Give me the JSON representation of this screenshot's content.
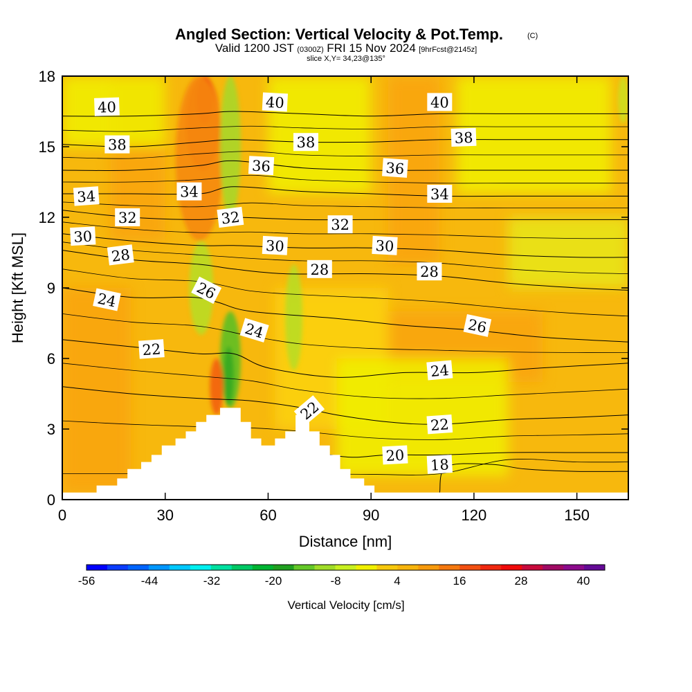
{
  "title": "Angled Section: Vertical Velocity & Pot.Temp.",
  "title_mark": "(C)",
  "subtitle_pre": "Valid 1200 JST",
  "subtitle_utc": "(0300Z)",
  "subtitle_date": "FRI 15 Nov 2024",
  "subtitle_fcst": "[9hrFcst@2145z]",
  "slice_text": "slice X,Y= 34,23@135°",
  "chart_data": {
    "type": "contour",
    "xlabel": "Distance [nm]",
    "ylabel": "Height [Kft MSL]",
    "xlim": [
      0,
      165
    ],
    "ylim": [
      0,
      18
    ],
    "xticks": [
      "0",
      "30",
      "60",
      "90",
      "120",
      "150"
    ],
    "yticks": [
      "0",
      "3",
      "6",
      "9",
      "12",
      "15",
      "18"
    ],
    "terrain": [
      [
        0,
        0.3
      ],
      [
        10,
        0.3
      ],
      [
        10,
        0.6
      ],
      [
        16,
        0.6
      ],
      [
        16,
        0.9
      ],
      [
        19,
        0.9
      ],
      [
        19,
        1.3
      ],
      [
        23,
        1.3
      ],
      [
        23,
        1.6
      ],
      [
        26,
        1.6
      ],
      [
        26,
        1.9
      ],
      [
        29,
        1.9
      ],
      [
        29,
        2.3
      ],
      [
        33,
        2.3
      ],
      [
        33,
        2.6
      ],
      [
        36,
        2.6
      ],
      [
        36,
        2.9
      ],
      [
        39,
        2.9
      ],
      [
        39,
        3.3
      ],
      [
        42,
        3.3
      ],
      [
        42,
        3.6
      ],
      [
        46,
        3.6
      ],
      [
        46,
        3.9
      ],
      [
        52,
        3.9
      ],
      [
        52,
        3.3
      ],
      [
        55,
        3.3
      ],
      [
        55,
        2.6
      ],
      [
        58,
        2.6
      ],
      [
        58,
        2.3
      ],
      [
        62,
        2.3
      ],
      [
        62,
        2.6
      ],
      [
        65,
        2.6
      ],
      [
        65,
        2.9
      ],
      [
        68,
        2.9
      ],
      [
        68,
        3.6
      ],
      [
        72,
        3.6
      ],
      [
        72,
        2.9
      ],
      [
        75,
        2.9
      ],
      [
        75,
        2.3
      ],
      [
        78,
        2.3
      ],
      [
        78,
        1.9
      ],
      [
        81,
        1.9
      ],
      [
        81,
        1.3
      ],
      [
        84,
        1.3
      ],
      [
        84,
        0.9
      ],
      [
        88,
        0.9
      ],
      [
        88,
        0.6
      ],
      [
        91,
        0.6
      ],
      [
        91,
        0.3
      ],
      [
        165,
        0.3
      ]
    ],
    "contours": [
      {
        "level": "18",
        "pts": [
          [
            110,
            0.3
          ],
          [
            112,
            1.4
          ],
          [
            125,
            1.5
          ],
          [
            135,
            1.3
          ],
          [
            150,
            1.2
          ],
          [
            165,
            1.2
          ]
        ]
      },
      {
        "level": "20",
        "pts": [
          [
            78,
            1.9
          ],
          [
            85,
            1.8
          ],
          [
            95,
            1.9
          ],
          [
            110,
            1.9
          ],
          [
            130,
            2.0
          ],
          [
            150,
            2.0
          ],
          [
            165,
            2.0
          ]
        ]
      },
      {
        "level": "22",
        "pts": [
          [
            0,
            4.8
          ],
          [
            20,
            4.5
          ],
          [
            40,
            4.3
          ],
          [
            55,
            4.2
          ],
          [
            70,
            3.9
          ],
          [
            80,
            3.6
          ],
          [
            95,
            3.3
          ],
          [
            110,
            3.2
          ],
          [
            130,
            3.4
          ],
          [
            150,
            3.5
          ],
          [
            165,
            3.6
          ]
        ]
      },
      {
        "level": "24",
        "pts": [
          [
            0,
            6.8
          ],
          [
            20,
            6.5
          ],
          [
            40,
            6.2
          ],
          [
            50,
            6.2
          ],
          [
            60,
            5.6
          ],
          [
            80,
            5.2
          ],
          [
            100,
            5.4
          ],
          [
            120,
            5.4
          ],
          [
            140,
            5.6
          ],
          [
            165,
            5.8
          ]
        ]
      },
      {
        "level": "26",
        "pts": [
          [
            0,
            9.0
          ],
          [
            20,
            8.6
          ],
          [
            38,
            8.6
          ],
          [
            45,
            8.4
          ],
          [
            55,
            8.0
          ],
          [
            80,
            7.7
          ],
          [
            100,
            7.4
          ],
          [
            120,
            7.2
          ],
          [
            140,
            6.9
          ],
          [
            165,
            6.7
          ]
        ]
      },
      {
        "level": "28",
        "pts": [
          [
            0,
            10.6
          ],
          [
            20,
            10.2
          ],
          [
            40,
            10.0
          ],
          [
            50,
            9.8
          ],
          [
            65,
            9.6
          ],
          [
            90,
            9.6
          ],
          [
            110,
            9.5
          ],
          [
            130,
            9.2
          ],
          [
            150,
            9.0
          ],
          [
            165,
            8.9
          ]
        ]
      },
      {
        "level": "30",
        "pts": [
          [
            0,
            11.3
          ],
          [
            20,
            11.0
          ],
          [
            40,
            10.8
          ],
          [
            50,
            10.8
          ],
          [
            70,
            10.7
          ],
          [
            90,
            10.7
          ],
          [
            110,
            10.6
          ],
          [
            130,
            10.4
          ],
          [
            150,
            10.3
          ],
          [
            165,
            10.3
          ]
        ]
      },
      {
        "level": "32",
        "pts": [
          [
            0,
            12.3
          ],
          [
            20,
            12.0
          ],
          [
            40,
            11.9
          ],
          [
            50,
            12.0
          ],
          [
            70,
            11.9
          ],
          [
            90,
            11.9
          ],
          [
            110,
            11.9
          ],
          [
            130,
            11.9
          ],
          [
            150,
            11.9
          ],
          [
            165,
            11.9
          ]
        ]
      },
      {
        "level": "34",
        "pts": [
          [
            0,
            13.0
          ],
          [
            20,
            13.0
          ],
          [
            40,
            13.0
          ],
          [
            50,
            13.3
          ],
          [
            70,
            13.1
          ],
          [
            90,
            13.0
          ],
          [
            110,
            12.9
          ],
          [
            130,
            12.9
          ],
          [
            150,
            12.9
          ],
          [
            165,
            12.9
          ]
        ]
      },
      {
        "level": "36",
        "pts": [
          [
            0,
            14.0
          ],
          [
            20,
            14.0
          ],
          [
            40,
            14.2
          ],
          [
            50,
            14.4
          ],
          [
            70,
            14.1
          ],
          [
            90,
            14.0
          ],
          [
            110,
            14.0
          ],
          [
            130,
            14.0
          ],
          [
            150,
            14.0
          ],
          [
            165,
            14.0
          ]
        ]
      },
      {
        "level": "38",
        "pts": [
          [
            0,
            15.1
          ],
          [
            20,
            15.0
          ],
          [
            40,
            15.2
          ],
          [
            50,
            15.3
          ],
          [
            70,
            15.2
          ],
          [
            90,
            15.2
          ],
          [
            110,
            15.3
          ],
          [
            130,
            15.3
          ],
          [
            150,
            15.3
          ],
          [
            165,
            15.3
          ]
        ]
      },
      {
        "level": "40",
        "pts": [
          [
            0,
            16.3
          ],
          [
            20,
            16.3
          ],
          [
            40,
            16.4
          ],
          [
            50,
            16.5
          ],
          [
            70,
            16.4
          ],
          [
            90,
            16.3
          ],
          [
            110,
            16.4
          ],
          [
            130,
            16.4
          ],
          [
            150,
            16.4
          ],
          [
            165,
            16.4
          ]
        ]
      }
    ],
    "contour_labels": [
      {
        "text": "40",
        "x": 13,
        "y": 16.7,
        "angle": -2
      },
      {
        "text": "40",
        "x": 62,
        "y": 16.9,
        "angle": 3
      },
      {
        "text": "40",
        "x": 110,
        "y": 16.9,
        "angle": 0
      },
      {
        "text": "38",
        "x": 16,
        "y": 15.1,
        "angle": 0
      },
      {
        "text": "38",
        "x": 71,
        "y": 15.2,
        "angle": 0
      },
      {
        "text": "38",
        "x": 117,
        "y": 15.4,
        "angle": -2
      },
      {
        "text": "36",
        "x": 58,
        "y": 14.2,
        "angle": 3
      },
      {
        "text": "36",
        "x": 97,
        "y": 14.1,
        "angle": 4
      },
      {
        "text": "34",
        "x": 7,
        "y": 12.9,
        "angle": -4
      },
      {
        "text": "34",
        "x": 37,
        "y": 13.1,
        "angle": 0
      },
      {
        "text": "34",
        "x": 110,
        "y": 13.0,
        "angle": 0
      },
      {
        "text": "32",
        "x": 19,
        "y": 12.0,
        "angle": 0
      },
      {
        "text": "32",
        "x": 49,
        "y": 12.0,
        "angle": -7
      },
      {
        "text": "32",
        "x": 81,
        "y": 11.7,
        "angle": 0
      },
      {
        "text": "30",
        "x": 6,
        "y": 11.2,
        "angle": -3
      },
      {
        "text": "30",
        "x": 62,
        "y": 10.8,
        "angle": 3
      },
      {
        "text": "30",
        "x": 94,
        "y": 10.8,
        "angle": 3
      },
      {
        "text": "28",
        "x": 17,
        "y": 10.4,
        "angle": -7
      },
      {
        "text": "28",
        "x": 75,
        "y": 9.8,
        "angle": 0
      },
      {
        "text": "28",
        "x": 107,
        "y": 9.7,
        "angle": 0
      },
      {
        "text": "26",
        "x": 42,
        "y": 8.9,
        "angle": 27
      },
      {
        "text": "26",
        "x": 121,
        "y": 7.4,
        "angle": 12
      },
      {
        "text": "24",
        "x": 13,
        "y": 8.5,
        "angle": 12
      },
      {
        "text": "24",
        "x": 56,
        "y": 7.2,
        "angle": 17
      },
      {
        "text": "24",
        "x": 110,
        "y": 5.5,
        "angle": -5
      },
      {
        "text": "22",
        "x": 26,
        "y": 6.4,
        "angle": -4
      },
      {
        "text": "22",
        "x": 72,
        "y": 3.8,
        "angle": -40
      },
      {
        "text": "22",
        "x": 110,
        "y": 3.2,
        "angle": -4
      },
      {
        "text": "20",
        "x": 97,
        "y": 1.9,
        "angle": -3
      },
      {
        "text": "18",
        "x": 110,
        "y": 1.5,
        "angle": -3
      }
    ],
    "shading": {
      "background": "#f7b80d",
      "patches": [
        {
          "color": "#f9a30c",
          "x": [
            0,
            20
          ],
          "y": [
            0.3,
            9
          ]
        },
        {
          "color": "#f9a30c",
          "x": [
            14,
            30
          ],
          "y": [
            11,
            18
          ]
        },
        {
          "color": "#f9a30c",
          "x": [
            95,
            140
          ],
          "y": [
            5,
            8
          ]
        },
        {
          "color": "#f9a30c",
          "x": [
            95,
            110
          ],
          "y": [
            10,
            18
          ]
        },
        {
          "color": "#fbd20e",
          "x": [
            62,
            95
          ],
          "y": [
            3,
            9
          ]
        },
        {
          "color": "#f0f000",
          "x": [
            80,
            130
          ],
          "y": [
            1,
            6
          ]
        },
        {
          "color": "#f0f000",
          "x": [
            60,
            90
          ],
          "y": [
            13,
            18
          ]
        },
        {
          "color": "#f0f000",
          "x": [
            115,
            160
          ],
          "y": [
            13,
            18
          ]
        },
        {
          "color": "#f0f000",
          "x": [
            0,
            30
          ],
          "y": [
            15,
            18
          ]
        },
        {
          "color": "#e8e61a",
          "x": [
            130,
            165
          ],
          "y": [
            9,
            12
          ]
        }
      ],
      "plumes": [
        {
          "color": "#f25f12",
          "x": [
            36,
            46
          ],
          "y": [
            14,
            18
          ]
        },
        {
          "color": "#f0300c",
          "x": [
            39,
            44
          ],
          "y": [
            16,
            18
          ]
        },
        {
          "color": "#f58a10",
          "x": [
            33,
            47
          ],
          "y": [
            11,
            18
          ]
        },
        {
          "color": "#a8d62a",
          "x": [
            46,
            52
          ],
          "y": [
            12,
            18
          ]
        },
        {
          "color": "#b9dc22",
          "x": [
            37,
            44
          ],
          "y": [
            7,
            11
          ]
        },
        {
          "color": "#5cbf23",
          "x": [
            46,
            52
          ],
          "y": [
            3.9,
            8
          ]
        },
        {
          "color": "#35a820",
          "x": [
            47,
            50
          ],
          "y": [
            4,
            6.5
          ]
        },
        {
          "color": "#f25f12",
          "x": [
            43,
            47
          ],
          "y": [
            3.6,
            6
          ]
        },
        {
          "color": "#b9dc22",
          "x": [
            65,
            70
          ],
          "y": [
            5.5,
            10
          ]
        },
        {
          "color": "#ccdf20",
          "x": [
            162,
            165
          ],
          "y": [
            16,
            18
          ]
        }
      ]
    },
    "colorbar": {
      "label": "Vertical Velocity [cm/s]",
      "tick_labels": [
        "-56",
        "-44",
        "-32",
        "-20",
        "-8",
        "4",
        "16",
        "28",
        "40"
      ],
      "colors": [
        "#0000ff",
        "#0a3cff",
        "#0064ff",
        "#0096ff",
        "#00c8ff",
        "#00f0f0",
        "#00e0a0",
        "#00c864",
        "#00b432",
        "#20a020",
        "#64c828",
        "#a0dc28",
        "#c8f020",
        "#f0f000",
        "#f7c80d",
        "#f7b40d",
        "#f79a0d",
        "#f5780f",
        "#f25012",
        "#f02810",
        "#f00a0a",
        "#c80a3c",
        "#a00a64",
        "#8c0a8c",
        "#640a96"
      ]
    }
  }
}
